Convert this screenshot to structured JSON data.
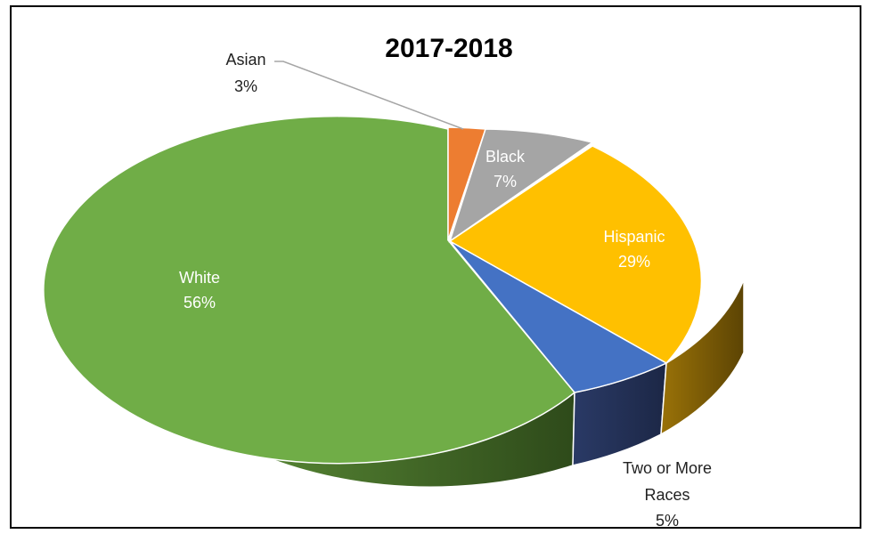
{
  "chart_data": {
    "type": "pie",
    "title": "2017-2018",
    "categories": [
      "Asian",
      "Black",
      "Hispanic",
      "Two or More Races",
      "White"
    ],
    "values": [
      3,
      7,
      29,
      5,
      56
    ],
    "value_labels": [
      "3%",
      "7%",
      "29%",
      "5%",
      "56%"
    ],
    "colors": [
      "#ED7D31",
      "#A5A5A5",
      "#FFC000",
      "#4472C4",
      "#70AD47"
    ],
    "style": "3d-exploded-disc",
    "legend": "none"
  }
}
